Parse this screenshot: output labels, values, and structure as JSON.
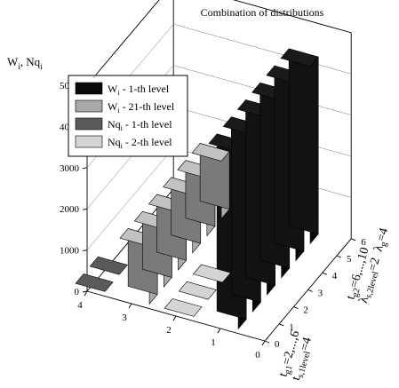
{
  "chart_data": {
    "type": "bar",
    "title": "Combination of distributions",
    "zlabel_main": "W",
    "zlabel_sub": "i",
    "zlabel_main2": ", Nq",
    "zlabel_sub2": "i",
    "zlim": [
      0,
      5000
    ],
    "z_ticks": [
      "0",
      "1000",
      "2000",
      "3000",
      "4000",
      "5000"
    ],
    "x_ticks": [
      "0",
      "1",
      "2",
      "3",
      "4"
    ],
    "y_ticks": [
      "0",
      "1",
      "2",
      "3",
      "4",
      "5",
      "6"
    ],
    "xlabel_lines": [
      "t",
      "g1",
      "=2,...,6",
      "t",
      "s,1level",
      "=4"
    ],
    "ylabel_lines": [
      "t",
      "g2",
      "=6,...,10",
      "λ",
      "s,2level",
      "=2",
      "λ",
      "g",
      "=4"
    ],
    "legend": [
      {
        "main": "W",
        "sub": "i",
        "rest": " - 1-th level",
        "color": "#0a0a0a"
      },
      {
        "main": "W",
        "sub": "i",
        "rest": " - 21-th level",
        "color": "#a9a9a9"
      },
      {
        "main": "Nq",
        "sub": "i",
        "rest": " - 1-th level",
        "color": "#5a5a5a"
      },
      {
        "main": "Nq",
        "sub": "i",
        "rest": " - 2-th level",
        "color": "#d4d4d4"
      }
    ],
    "series": [
      {
        "name": "W_i - 1-th level",
        "color": "#0a0a0a",
        "points": [
          {
            "x": 1,
            "y": 0,
            "z": 4300
          },
          {
            "x": 1,
            "y": 1,
            "z": 4300
          },
          {
            "x": 1,
            "y": 2,
            "z": 4300
          },
          {
            "x": 1,
            "y": 3,
            "z": 4300
          },
          {
            "x": 1,
            "y": 4,
            "z": 4300
          },
          {
            "x": 1,
            "y": 5,
            "z": 4300
          }
        ]
      },
      {
        "name": "W_i - 21-th level",
        "color": "#a9a9a9",
        "points": [
          {
            "x": 3,
            "y": 0,
            "z": 1400
          },
          {
            "x": 3,
            "y": 1,
            "z": 1400
          },
          {
            "x": 3,
            "y": 2,
            "z": 1400
          },
          {
            "x": 3,
            "y": 3,
            "z": 1400
          },
          {
            "x": 3,
            "y": 4,
            "z": 1400
          },
          {
            "x": 3,
            "y": 5,
            "z": 1400
          }
        ]
      },
      {
        "name": "Nq_i - 1-th level",
        "color": "#5a5a5a",
        "points": [
          {
            "x": 4,
            "y": 0,
            "z": 0
          },
          {
            "x": 4,
            "y": 1,
            "z": 0
          }
        ]
      },
      {
        "name": "Nq_i - 2-th level",
        "color": "#d4d4d4",
        "points": [
          {
            "x": 2,
            "y": 0,
            "z": 0
          },
          {
            "x": 2,
            "y": 1,
            "z": 0
          },
          {
            "x": 2,
            "y": 2,
            "z": 0
          }
        ]
      }
    ]
  }
}
